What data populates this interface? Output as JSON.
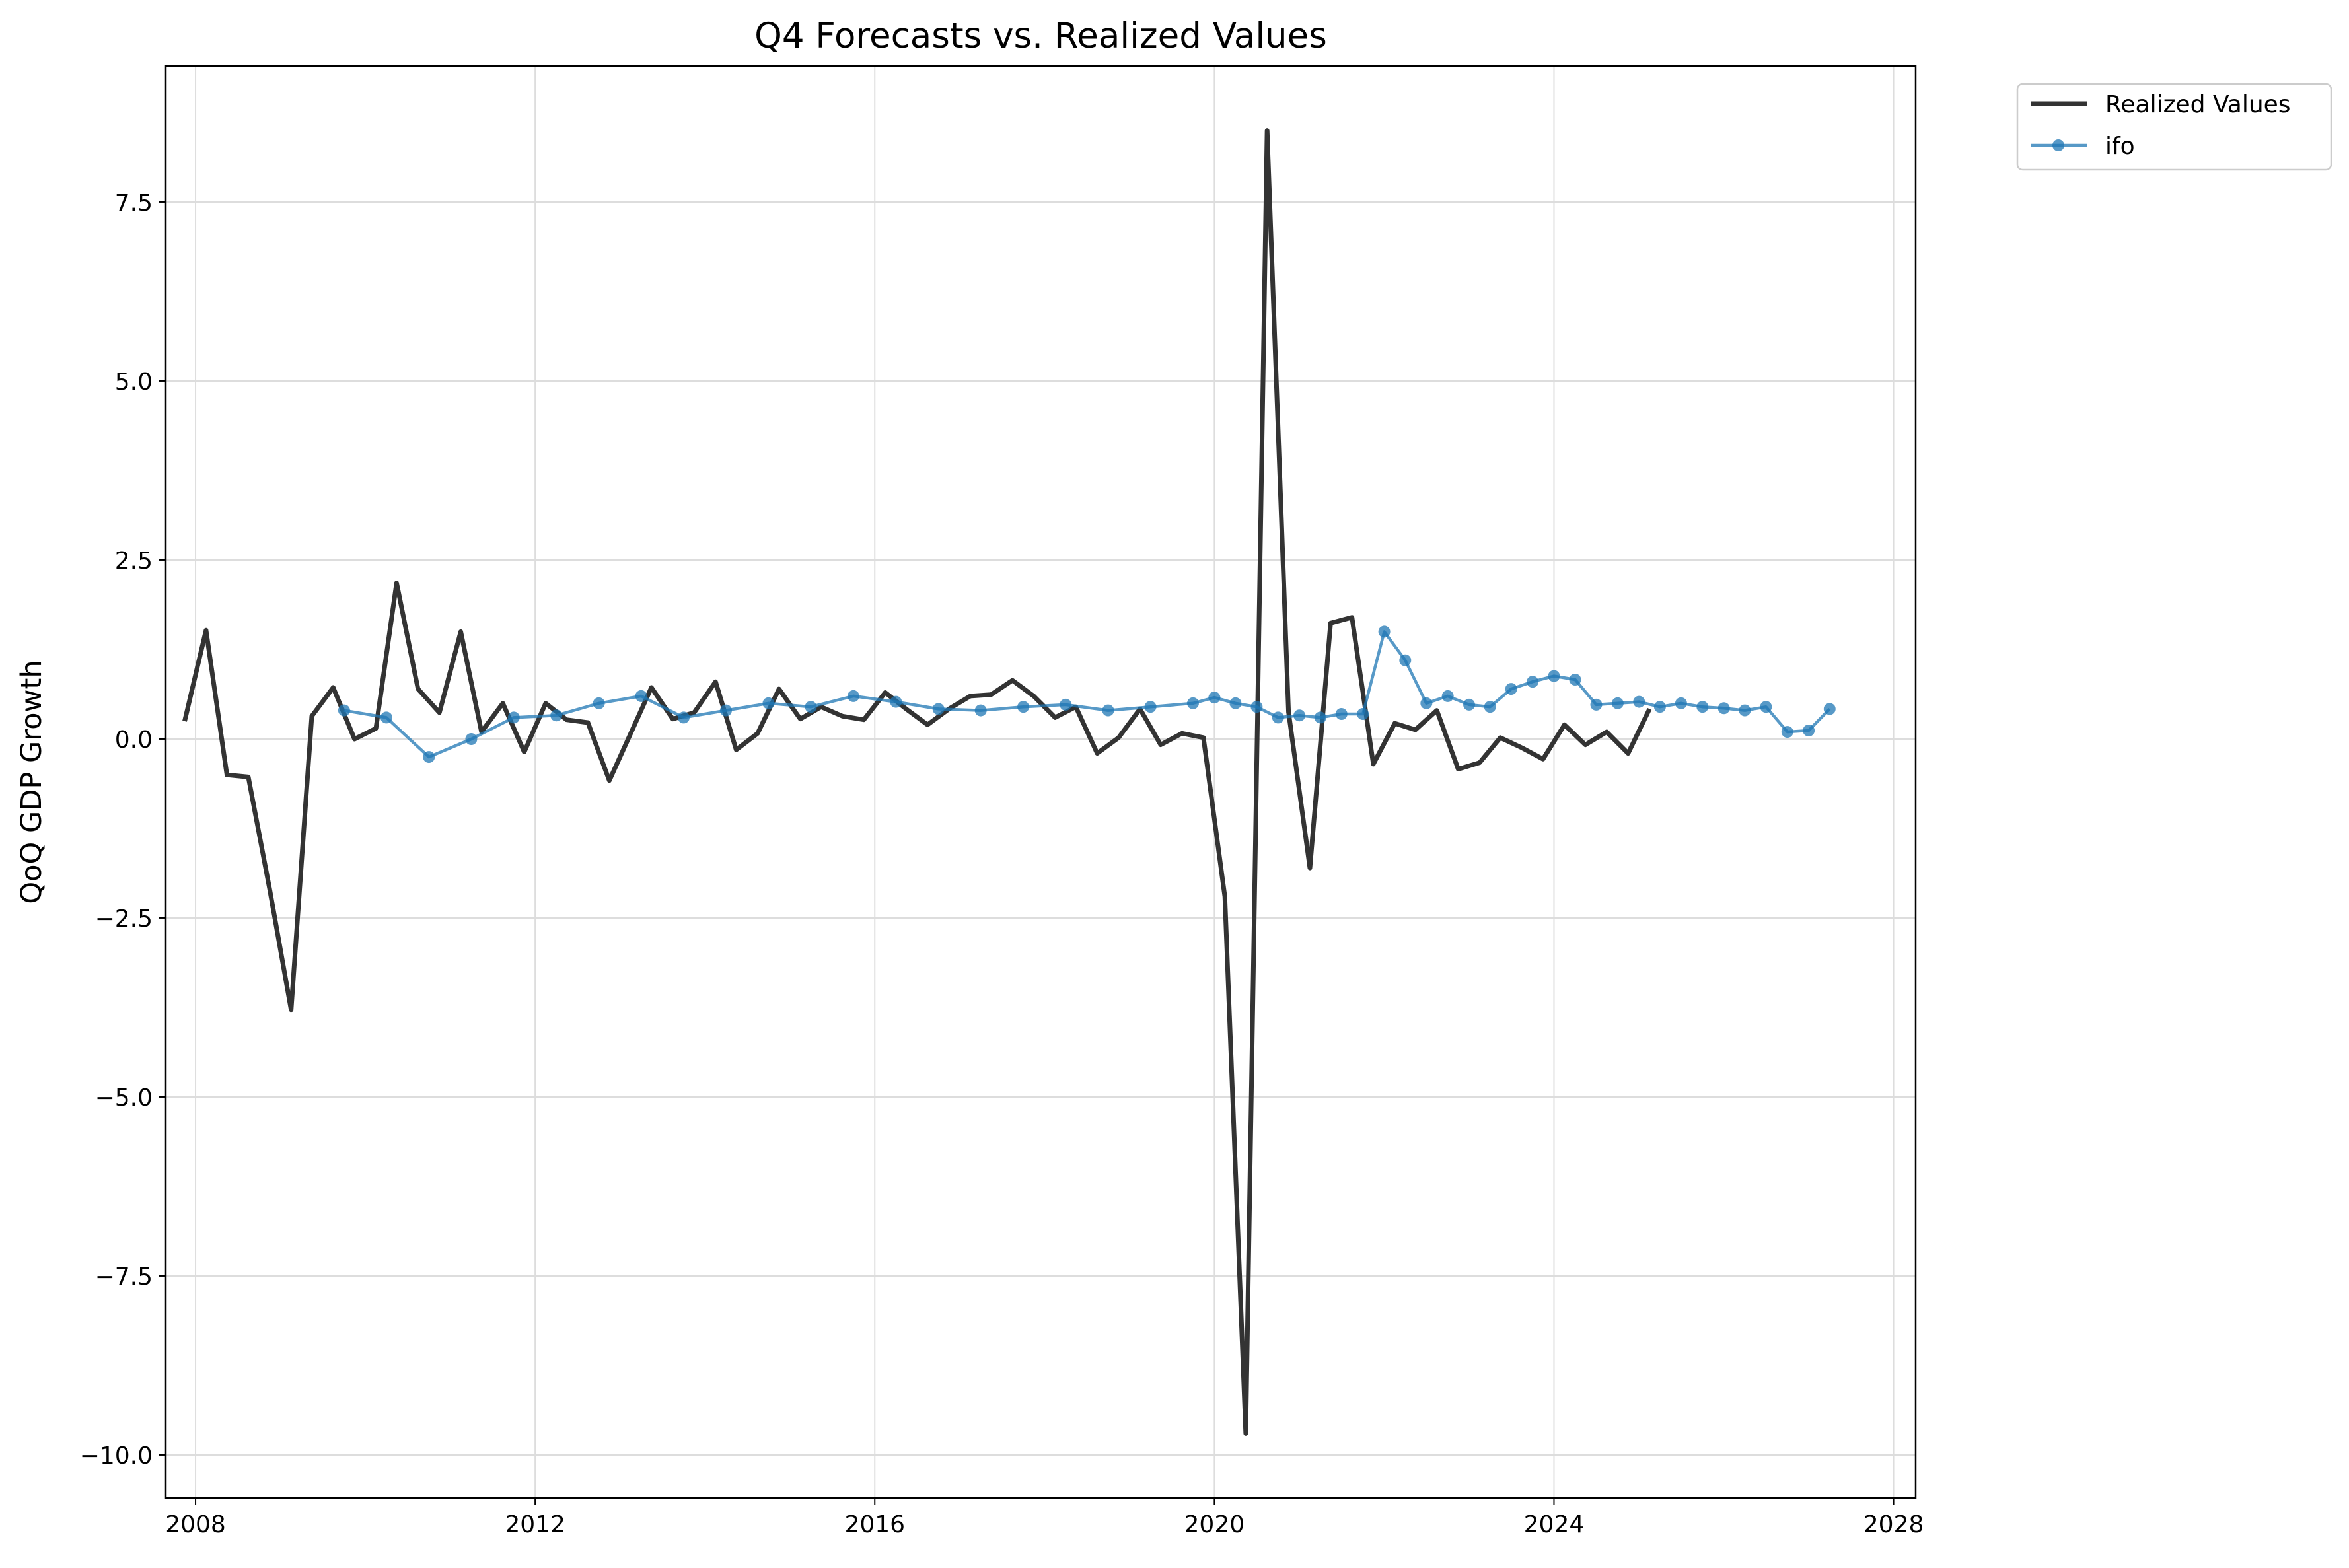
{
  "chart_data": {
    "type": "line",
    "title": "Q4 Forecasts vs. Realized Values",
    "xlabel": "",
    "ylabel": "QoQ GDP Growth",
    "x_axis_type": "date",
    "xlim": [
      "2007-08-26",
      "2028-04-05"
    ],
    "ylim": [
      -10.6,
      9.4
    ],
    "x_ticks": [
      "2008",
      "2012",
      "2016",
      "2020",
      "2024",
      "2028"
    ],
    "x_tick_dates": [
      "2008-01-01",
      "2012-01-01",
      "2016-01-01",
      "2020-01-01",
      "2024-01-01",
      "2028-01-01"
    ],
    "y_ticks": [
      -10.0,
      -7.5,
      -5.0,
      -2.5,
      0.0,
      2.5,
      5.0,
      7.5
    ],
    "y_tick_labels": [
      "−10.0",
      "−7.5",
      "−5.0",
      "−2.5",
      "0.0",
      "2.5",
      "5.0",
      "7.5"
    ],
    "grid": true,
    "legend_position": "outside-top-right",
    "series": [
      {
        "name": "Realized Values",
        "color": "#333333",
        "marker": "none",
        "x": [
          "2007-11-15",
          "2008-02-15",
          "2008-05-15",
          "2008-08-15",
          "2008-11-15",
          "2009-02-15",
          "2009-05-15",
          "2009-08-15",
          "2009-11-15",
          "2010-02-15",
          "2010-05-15",
          "2010-08-15",
          "2010-11-15",
          "2011-02-15",
          "2011-05-15",
          "2011-08-15",
          "2011-11-15",
          "2012-02-15",
          "2012-05-15",
          "2012-08-15",
          "2012-11-15",
          "2013-02-15",
          "2013-05-15",
          "2013-08-15",
          "2013-11-15",
          "2014-02-15",
          "2014-05-15",
          "2014-08-15",
          "2014-11-15",
          "2015-02-15",
          "2015-05-15",
          "2015-08-15",
          "2015-11-15",
          "2016-02-15",
          "2016-05-15",
          "2016-08-15",
          "2016-11-15",
          "2017-02-15",
          "2017-05-15",
          "2017-08-15",
          "2017-11-15",
          "2018-02-15",
          "2018-05-15",
          "2018-08-15",
          "2018-11-15",
          "2019-02-15",
          "2019-05-15",
          "2019-08-15",
          "2019-11-15",
          "2020-02-15",
          "2020-05-15",
          "2020-08-15",
          "2020-11-15",
          "2021-02-15",
          "2021-05-15",
          "2021-08-15",
          "2021-11-15",
          "2022-02-15",
          "2022-05-15",
          "2022-08-15",
          "2022-11-15",
          "2023-02-15",
          "2023-05-15",
          "2023-08-15",
          "2023-11-15",
          "2024-02-15",
          "2024-05-15",
          "2024-08-15",
          "2024-11-15",
          "2025-02-15"
        ],
        "y": [
          0.25,
          1.52,
          -0.5,
          -0.53,
          -2.1,
          -3.78,
          0.32,
          0.72,
          0.0,
          0.15,
          2.18,
          0.7,
          0.37,
          1.5,
          0.1,
          0.5,
          -0.18,
          0.5,
          0.27,
          0.23,
          -0.58,
          0.08,
          0.72,
          0.28,
          0.37,
          0.8,
          -0.15,
          0.08,
          0.7,
          0.28,
          0.45,
          0.32,
          0.27,
          0.65,
          0.42,
          0.2,
          0.42,
          0.6,
          0.62,
          0.82,
          0.6,
          0.3,
          0.45,
          -0.2,
          0.02,
          0.42,
          -0.08,
          0.08,
          0.02,
          -2.2,
          -9.7,
          8.5,
          0.38,
          -1.8,
          1.62,
          1.7,
          -0.35,
          0.22,
          0.13,
          0.4,
          -0.42,
          -0.33,
          0.02,
          -0.12,
          -0.28,
          0.2,
          -0.08,
          0.1,
          -0.2,
          0.42
        ]
      },
      {
        "name": "ifo",
        "color": "#1f77b4",
        "marker": "circle",
        "x": [
          "2009-10-01",
          "2010-04-01",
          "2010-10-01",
          "2011-04-01",
          "2011-10-01",
          "2012-04-01",
          "2012-10-01",
          "2013-04-01",
          "2013-10-01",
          "2014-04-01",
          "2014-10-01",
          "2015-04-01",
          "2015-10-01",
          "2016-04-01",
          "2016-10-01",
          "2017-04-01",
          "2017-10-01",
          "2018-04-01",
          "2018-10-01",
          "2019-04-01",
          "2019-10-01",
          "2020-01-01",
          "2020-04-01",
          "2020-07-01",
          "2020-10-01",
          "2021-01-01",
          "2021-04-01",
          "2021-07-01",
          "2021-10-01",
          "2022-01-01",
          "2022-04-01",
          "2022-07-01",
          "2022-10-01",
          "2023-01-01",
          "2023-04-01",
          "2023-07-01",
          "2023-10-01",
          "2024-01-01",
          "2024-04-01",
          "2024-07-01",
          "2024-10-01",
          "2025-01-01",
          "2025-04-01",
          "2025-07-01",
          "2025-10-01",
          "2026-01-01",
          "2026-04-01",
          "2026-07-01",
          "2026-10-01",
          "2027-01-01",
          "2027-04-01"
        ],
        "y": [
          0.4,
          0.3,
          -0.25,
          0.0,
          0.3,
          0.33,
          0.5,
          0.6,
          0.3,
          0.4,
          0.5,
          0.45,
          0.6,
          0.52,
          0.42,
          0.4,
          0.45,
          0.48,
          0.4,
          0.45,
          0.5,
          0.58,
          0.5,
          0.45,
          0.3,
          0.33,
          0.3,
          0.35,
          0.35,
          1.5,
          1.1,
          0.5,
          0.6,
          0.48,
          0.45,
          0.7,
          0.8,
          0.88,
          0.83,
          0.48,
          0.5,
          0.52,
          0.45,
          0.5,
          0.45,
          0.43,
          0.4,
          0.45,
          0.1,
          0.12,
          0.42
        ]
      }
    ]
  }
}
